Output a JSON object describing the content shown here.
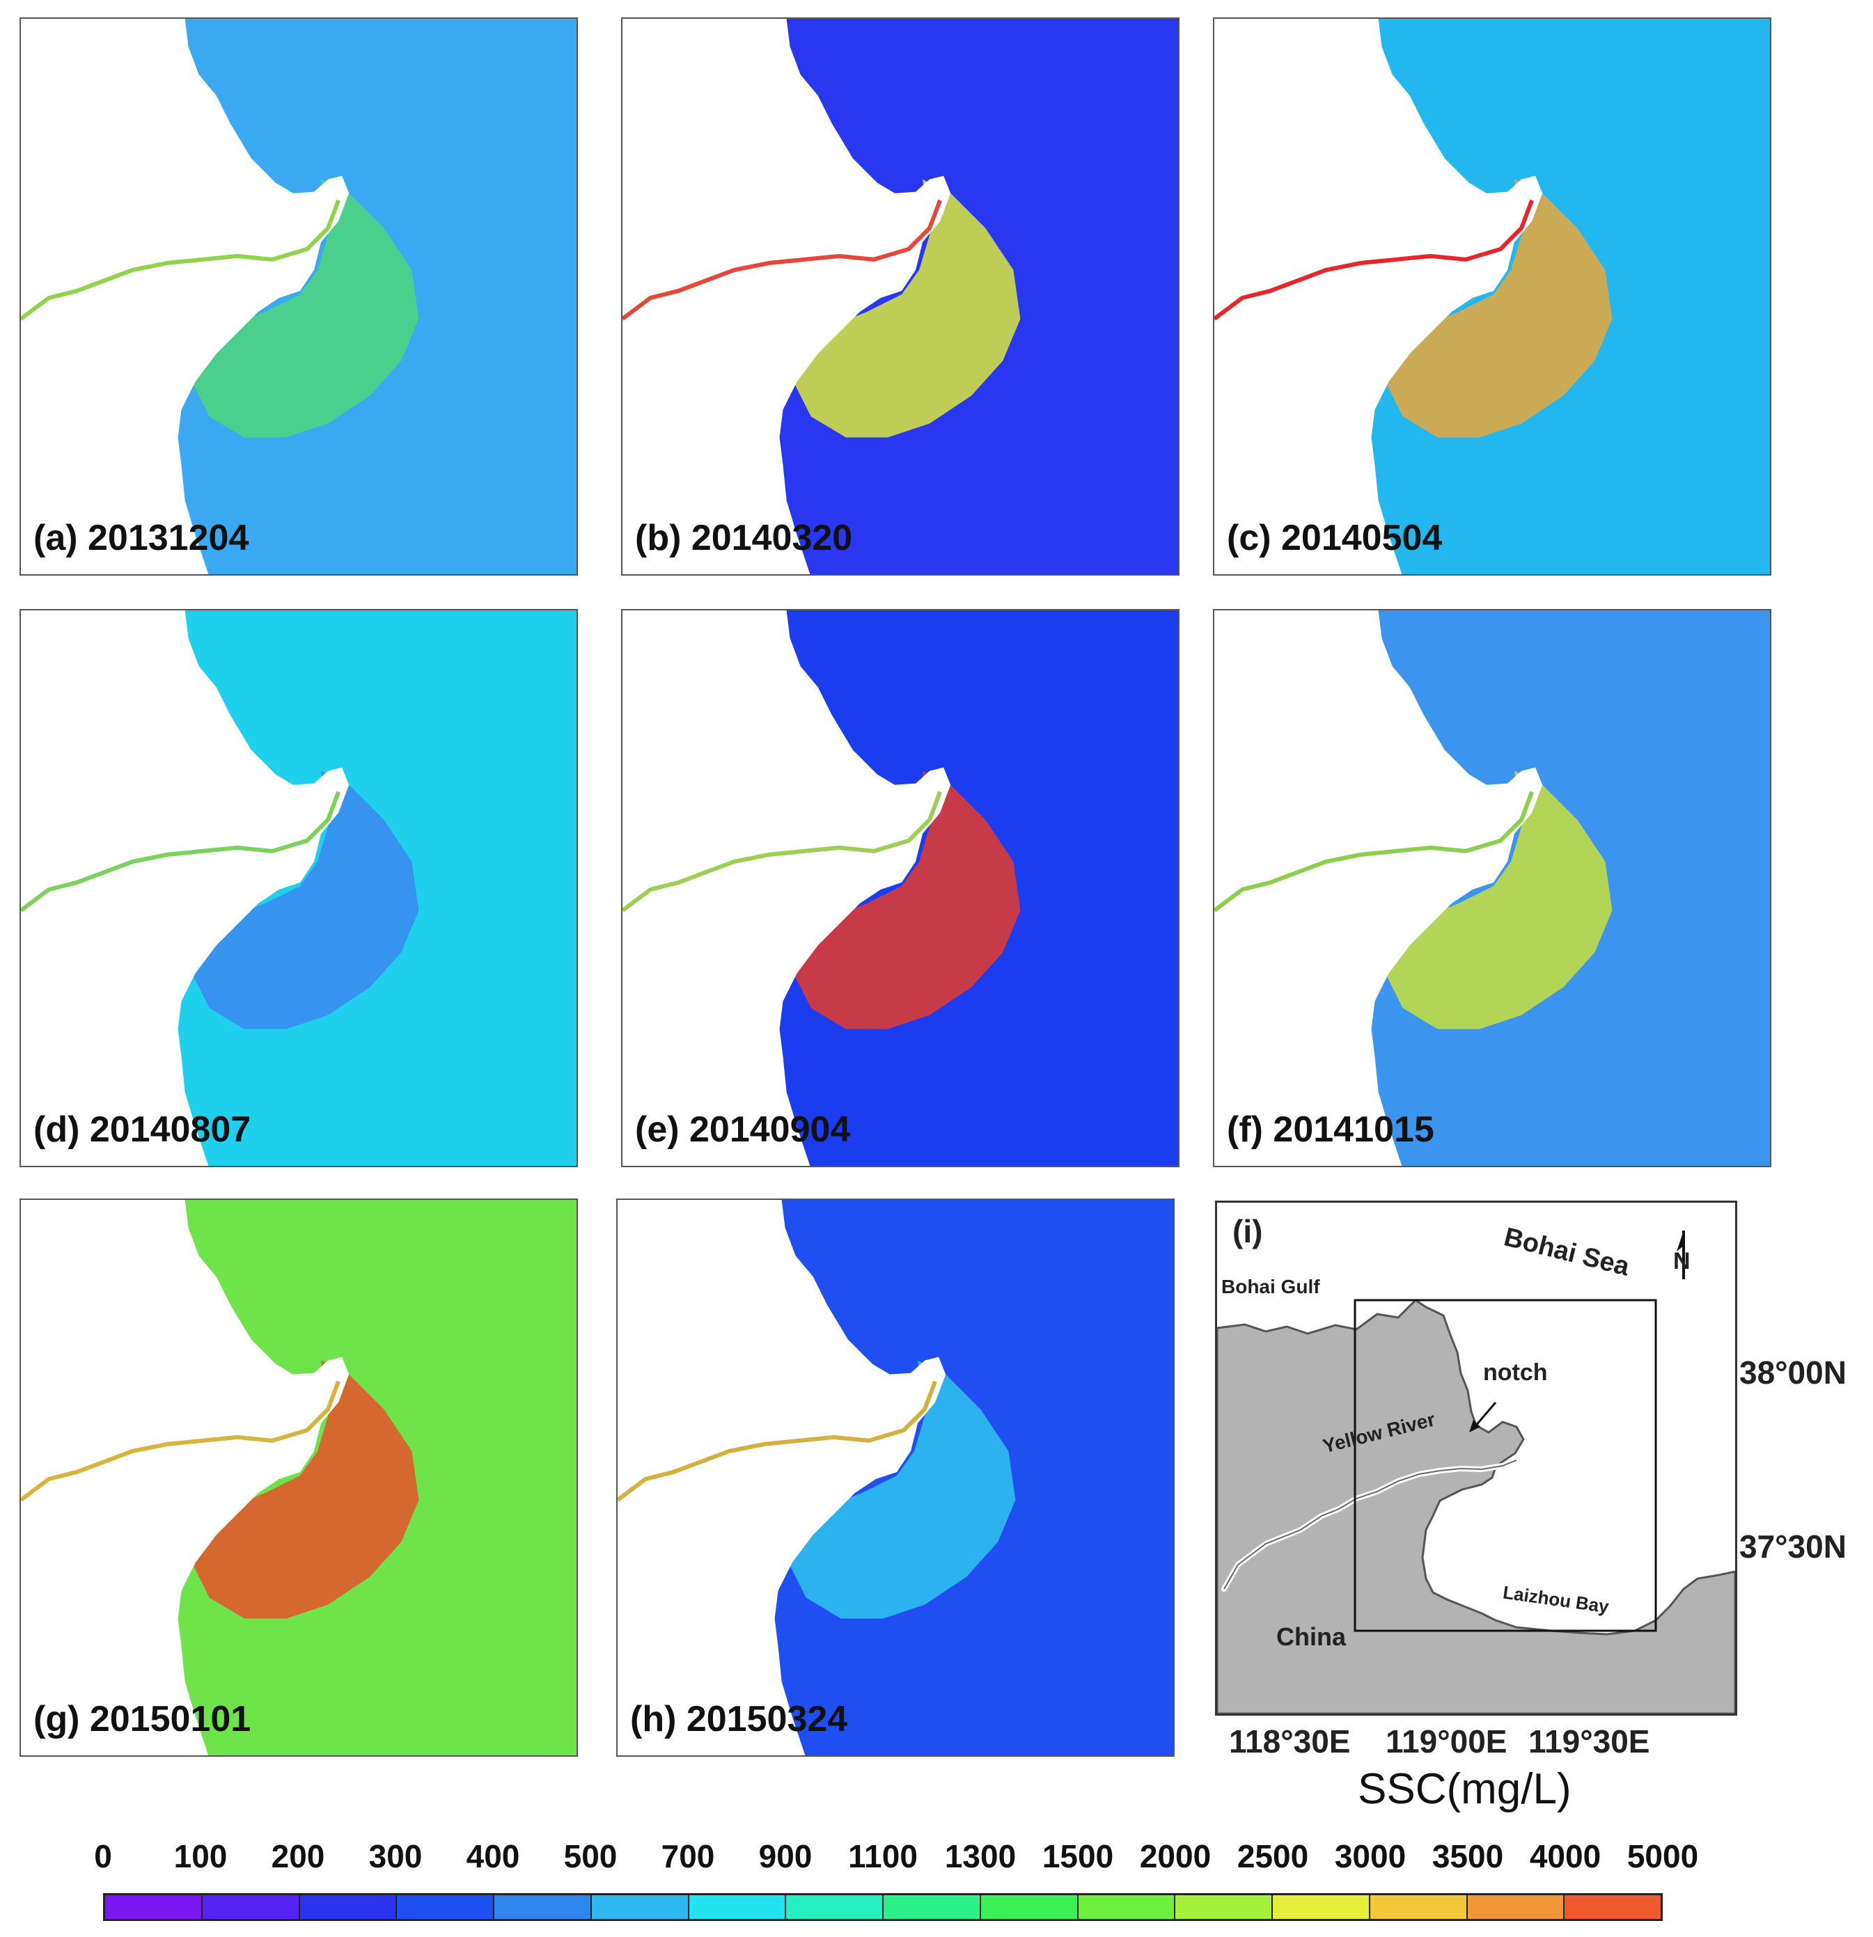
{
  "panels": [
    {
      "label": "(a) 20131204",
      "sea": "#3aa9f2",
      "plume": "#4dd67a",
      "land": "#ffffff",
      "river": "#8fd44a"
    },
    {
      "label": "(b) 20140320",
      "sea": "#2a37f0",
      "plume": "#d8e83a",
      "land": "#ffffff",
      "river": "#e8463a"
    },
    {
      "label": "(c) 20140504",
      "sea": "#22b7ef",
      "plume": "#e8a83a",
      "land": "#ffffff",
      "river": "#e8262a"
    },
    {
      "label": "(d) 20140807",
      "sea": "#1fd0ec",
      "plume": "#3b88f0",
      "land": "#ffffff",
      "river": "#7ad25a"
    },
    {
      "label": "(e) 20140904",
      "sea": "#1c3cf0",
      "plume": "#e53b2a",
      "land": "#ffffff",
      "river": "#9ccf52"
    },
    {
      "label": "(f) 20141015",
      "sea": "#3b95ee",
      "plume": "#c9e03c",
      "land": "#ffffff",
      "river": "#8ad04c"
    },
    {
      "label": "(g) 20150101",
      "sea": "#6fe34a",
      "plume": "#e8522a",
      "land": "#ffffff",
      "river": "#d8b43a"
    },
    {
      "label": "(h) 20150324",
      "sea": "#1f4ff0",
      "plume": "#2fc4ef",
      "land": "#ffffff",
      "river": "#d4b03e"
    }
  ],
  "inset_map": {
    "label": "(i)",
    "places": {
      "bohai_sea": "Bohai Sea",
      "bohai_gulf": "Bohai Gulf",
      "notch": "notch",
      "yellow_river": "Yellow River",
      "laizhou_bay": "Laizhou Bay",
      "china": "China"
    },
    "north_symbol": "N",
    "lat_ticks": [
      "38°00N",
      "37°30N"
    ],
    "lon_ticks": [
      "118°30E",
      "119°00E",
      "119°30E"
    ]
  },
  "colorbar": {
    "title": "SSC(mg/L)",
    "values": [
      "0",
      "100",
      "200",
      "300",
      "400",
      "500",
      "700",
      "900",
      "1100",
      "1300",
      "1500",
      "2000",
      "2500",
      "3000",
      "3500",
      "4000",
      "5000"
    ],
    "colors": [
      "#7a18f2",
      "#5524f2",
      "#2c33ef",
      "#1e4ff0",
      "#2f86ef",
      "#2fb7ef",
      "#22e3ee",
      "#25efc0",
      "#2ef08a",
      "#3bf052",
      "#6cf03b",
      "#a6ef3a",
      "#e3ef3a",
      "#f2c73a",
      "#f2963a",
      "#ee5a2e"
    ]
  }
}
